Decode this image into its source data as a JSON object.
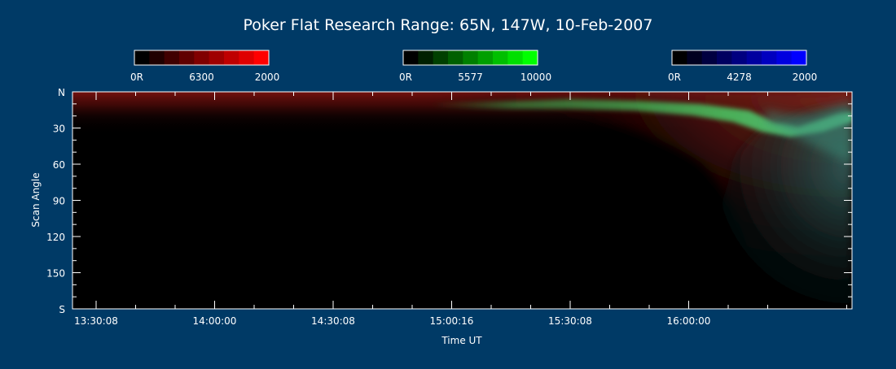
{
  "chart_data": {
    "type": "heatmap",
    "title": "Poker Flat Research Range: 65N, 147W, 10-Feb-2007",
    "xlabel": "Time UT",
    "ylabel": "Scan Angle",
    "x_ticks": [
      "13:30:08",
      "14:00:00",
      "14:30:08",
      "15:00:16",
      "15:30:08",
      "16:00:00"
    ],
    "y_ticks": [
      "N",
      "30",
      "60",
      "90",
      "120",
      "150",
      "S"
    ],
    "y_tick_values": [
      0,
      30,
      60,
      90,
      120,
      150,
      180
    ],
    "colorbars": [
      {
        "name": "red",
        "min_label": "0R",
        "mid_label": "6300",
        "max_label": "2000",
        "color": "#ff0000"
      },
      {
        "name": "green",
        "min_label": "0R",
        "mid_label": "5577",
        "max_label": "10000",
        "color": "#00ff00"
      },
      {
        "name": "blue",
        "min_label": "0R",
        "mid_label": "4278",
        "max_label": "2000",
        "color": "#0000ff"
      }
    ],
    "colors": {
      "background": "#003a66",
      "plot_background": "#000000",
      "axis": "#ffffff"
    }
  }
}
